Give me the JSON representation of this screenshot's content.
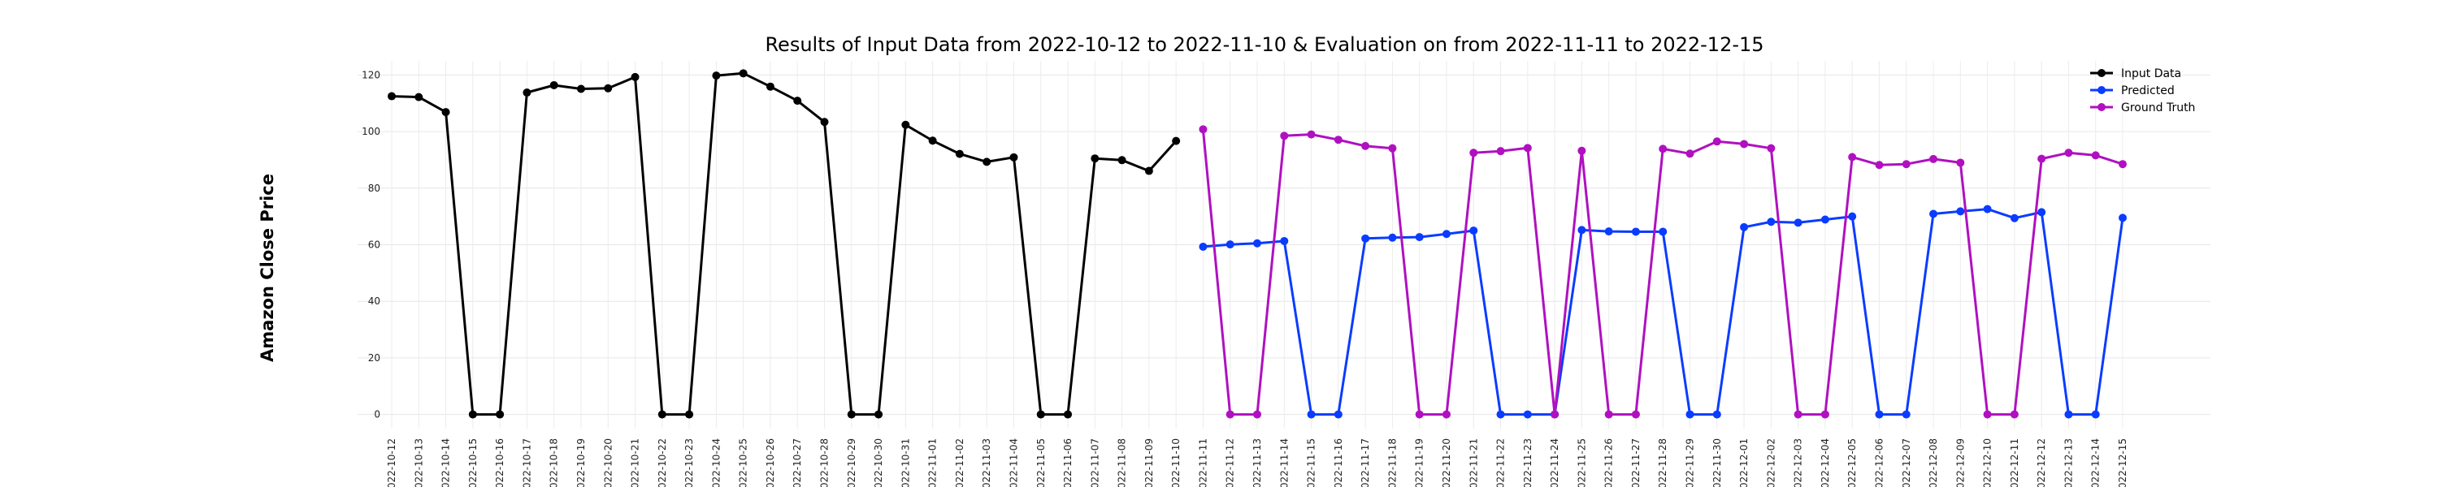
{
  "chart_data": {
    "type": "line",
    "title": "Results of Input Data from 2022-10-12 to 2022-11-10 & Evaluation on from 2022-11-11 to 2022-12-15",
    "xlabel": "",
    "ylabel": "Amazon Close Price",
    "ylim": [
      -5,
      125
    ],
    "yticks": [
      0,
      20,
      40,
      60,
      80,
      100,
      120
    ],
    "grid": true,
    "legend_position": "top-right",
    "x_tick_labels": [
      "2022-10-12",
      "2022-10-13",
      "2022-10-14",
      "2022-10-15",
      "2022-10-16",
      "2022-10-17",
      "2022-10-18",
      "2022-10-19",
      "2022-10-20",
      "2022-10-21",
      "2022-10-22",
      "2022-10-23",
      "2022-10-24",
      "2022-10-25",
      "2022-10-26",
      "2022-10-27",
      "2022-10-28",
      "2022-10-29",
      "2022-10-30",
      "2022-10-31",
      "2022-11-01",
      "2022-11-02",
      "2022-11-03",
      "2022-11-04",
      "2022-11-05",
      "2022-11-06",
      "2022-11-07",
      "2022-11-08",
      "2022-11-09",
      "2022-11-10",
      "2022-11-11",
      "2022-11-12",
      "2022-11-13",
      "2022-11-14",
      "2022-11-15",
      "2022-11-16",
      "2022-11-17",
      "2022-11-18",
      "2022-11-19",
      "2022-11-20",
      "2022-11-21",
      "2022-11-22",
      "2022-11-23",
      "2022-11-24",
      "2022-11-25",
      "2022-11-26",
      "2022-11-27",
      "2022-11-28",
      "2022-11-29",
      "2022-11-30",
      "2022-12-01",
      "2022-12-02",
      "2022-12-03",
      "2022-12-04",
      "2022-12-05",
      "2022-12-06",
      "2022-12-07",
      "2022-12-08",
      "2022-12-09",
      "2022-12-10",
      "2022-12-11",
      "2022-12-12",
      "2022-12-13",
      "2022-12-14",
      "2022-12-15"
    ],
    "series": [
      {
        "name": "Input Data",
        "color": "#000000",
        "x": [
          "2022-10-12",
          "2022-10-13",
          "2022-10-14",
          "2022-10-15",
          "2022-10-16",
          "2022-10-17",
          "2022-10-18",
          "2022-10-19",
          "2022-10-20",
          "2022-10-21",
          "2022-10-22",
          "2022-10-23",
          "2022-10-24",
          "2022-10-25",
          "2022-10-26",
          "2022-10-27",
          "2022-10-28",
          "2022-10-29",
          "2022-10-30",
          "2022-10-31",
          "2022-11-01",
          "2022-11-02",
          "2022-11-03",
          "2022-11-04",
          "2022-11-05",
          "2022-11-06",
          "2022-11-07",
          "2022-11-08",
          "2022-11-09",
          "2022-11-10"
        ],
        "values": [
          112.5,
          112.2,
          106.9,
          0,
          0,
          113.8,
          116.4,
          115.1,
          115.3,
          119.3,
          0,
          0,
          119.8,
          120.6,
          115.9,
          110.9,
          103.4,
          0,
          0,
          102.4,
          96.8,
          92.1,
          89.3,
          90.9,
          0,
          0,
          90.5,
          89.9,
          86.1,
          96.7
        ]
      },
      {
        "name": "Predicted",
        "color": "#0a3cff",
        "x": [
          "2022-11-11",
          "2022-11-12",
          "2022-11-13",
          "2022-11-14",
          "2022-11-15",
          "2022-11-16",
          "2022-11-17",
          "2022-11-18",
          "2022-11-19",
          "2022-11-20",
          "2022-11-21",
          "2022-11-22",
          "2022-11-23",
          "2022-11-24",
          "2022-11-25",
          "2022-11-26",
          "2022-11-27",
          "2022-11-28",
          "2022-11-29",
          "2022-11-30",
          "2022-12-01",
          "2022-12-02",
          "2022-12-03",
          "2022-12-04",
          "2022-12-05",
          "2022-12-06",
          "2022-12-07",
          "2022-12-08",
          "2022-12-09",
          "2022-12-10",
          "2022-12-11",
          "2022-12-12",
          "2022-12-13",
          "2022-12-14",
          "2022-12-15"
        ],
        "values": [
          59.3,
          60.1,
          60.5,
          61.3,
          0,
          0,
          62.2,
          62.5,
          62.7,
          63.8,
          65.0,
          0,
          0,
          0,
          65.2,
          64.7,
          64.6,
          64.6,
          0,
          0,
          66.2,
          68.1,
          67.8,
          68.9,
          70.0,
          0,
          0,
          70.9,
          71.8,
          72.6,
          69.4,
          71.5,
          0,
          0,
          69.5
        ]
      },
      {
        "name": "Ground Truth",
        "color": "#b010c0",
        "x": [
          "2022-11-11",
          "2022-11-12",
          "2022-11-13",
          "2022-11-14",
          "2022-11-15",
          "2022-11-16",
          "2022-11-17",
          "2022-11-18",
          "2022-11-19",
          "2022-11-20",
          "2022-11-21",
          "2022-11-22",
          "2022-11-23",
          "2022-11-24",
          "2022-11-25",
          "2022-11-26",
          "2022-11-27",
          "2022-11-28",
          "2022-11-29",
          "2022-11-30",
          "2022-12-01",
          "2022-12-02",
          "2022-12-03",
          "2022-12-04",
          "2022-12-05",
          "2022-12-06",
          "2022-12-07",
          "2022-12-08",
          "2022-12-09",
          "2022-12-10",
          "2022-12-11",
          "2022-12-12",
          "2022-12-13",
          "2022-12-14",
          "2022-12-15"
        ],
        "values": [
          100.8,
          0,
          0,
          98.5,
          99.0,
          97.1,
          94.9,
          94.1,
          0,
          0,
          92.5,
          93.1,
          94.2,
          0,
          93.2,
          0,
          0,
          93.9,
          92.2,
          96.5,
          95.6,
          94.1,
          0,
          0,
          91.0,
          88.2,
          88.5,
          90.3,
          89.0,
          0,
          0,
          90.4,
          92.5,
          91.6,
          88.5
        ]
      }
    ]
  }
}
